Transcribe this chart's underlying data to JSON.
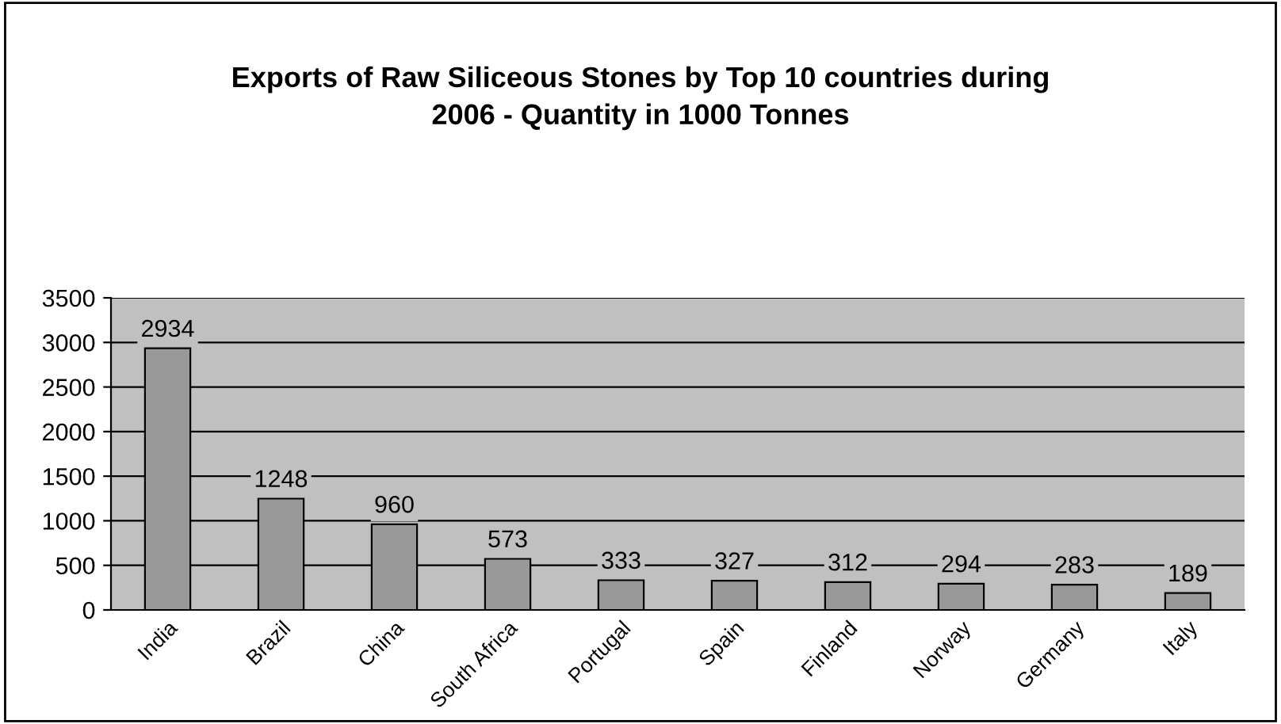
{
  "chart_data": {
    "type": "bar",
    "title": "Exports of Raw Siliceous Stones by Top 10 countries during\n2006 - Quantity in 1000 Tonnes",
    "categories": [
      "India",
      "Brazil",
      "China",
      "South Africa",
      "Portugal",
      "Spain",
      "Finland",
      "Norway",
      "Germany",
      "Italy"
    ],
    "values": [
      2934,
      1248,
      960,
      573,
      333,
      327,
      312,
      294,
      283,
      189
    ],
    "color": "#999999",
    "ylim": [
      0,
      3500
    ],
    "yticks": [
      0,
      500,
      1000,
      1500,
      2000,
      2500,
      3000,
      3500
    ],
    "grid": "y",
    "data_labels": true
  }
}
